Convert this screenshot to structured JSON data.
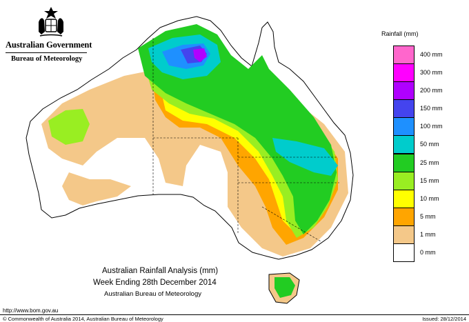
{
  "header": {
    "government": "Australian Government",
    "bureau": "Bureau of Meteorology",
    "crest_icon": "commonwealth-coat-of-arms-icon"
  },
  "legend": {
    "title": "Rainfall (mm)",
    "items": [
      {
        "label": "400 mm",
        "color": "#ff66cc"
      },
      {
        "label": "300 mm",
        "color": "#ff00ff"
      },
      {
        "label": "200 mm",
        "color": "#b000ff"
      },
      {
        "label": "150 mm",
        "color": "#4444ee"
      },
      {
        "label": "100 mm",
        "color": "#1e90ff"
      },
      {
        "label": "50 mm",
        "color": "#00cccc"
      },
      {
        "label": "25 mm",
        "color": "#22cc22"
      },
      {
        "label": "15 mm",
        "color": "#99ee22"
      },
      {
        "label": "10 mm",
        "color": "#ffff00"
      },
      {
        "label": "5 mm",
        "color": "#ffa500"
      },
      {
        "label": "1 mm",
        "color": "#f4c889"
      },
      {
        "label": "0 mm",
        "color": "#ffffff"
      }
    ]
  },
  "title": {
    "line1": "Australian Rainfall Analysis (mm)",
    "line2": "Week Ending 28th December 2014",
    "line3": "Australian Bureau of Meteorology"
  },
  "footer": {
    "url": "http://www.bom.gov.au",
    "copyright": "© Commonwealth of Australia 2014, Australian Bureau of Meteorology",
    "issued": "Issued: 28/12/2014"
  }
}
